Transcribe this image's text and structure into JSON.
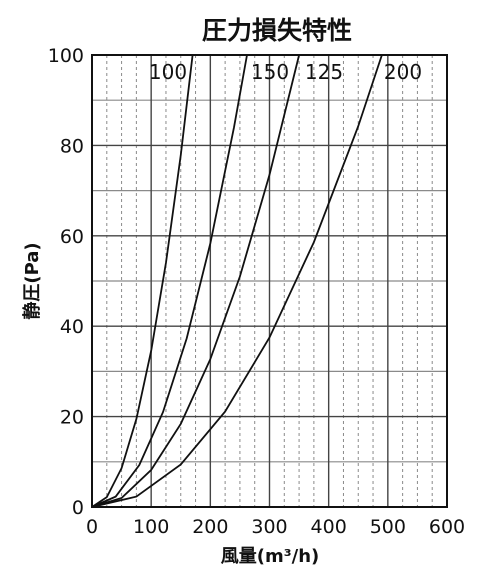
{
  "chart_data": {
    "type": "line",
    "title": "圧力損失特性",
    "xlabel": "風量(m³/h)",
    "ylabel": "静圧(Pa)",
    "xlim": [
      0,
      600
    ],
    "ylim": [
      0,
      100
    ],
    "xticks": [
      "0",
      "100",
      "200",
      "300",
      "400",
      "500",
      "600"
    ],
    "yticks": [
      "0",
      "20",
      "40",
      "60",
      "80",
      "100"
    ],
    "grid": true,
    "series": [
      {
        "name": "100",
        "x": [
          0,
          25,
          50,
          75,
          100,
          125,
          150,
          170
        ],
        "y": [
          0,
          2.2,
          8.6,
          19.5,
          34.6,
          54.1,
          77.9,
          100
        ]
      },
      {
        "name": "150",
        "x": [
          0,
          40,
          80,
          120,
          160,
          200,
          240,
          262
        ],
        "y": [
          0,
          2.3,
          9.3,
          21.0,
          37.3,
          58.3,
          84.0,
          100
        ]
      },
      {
        "name": "125",
        "x": [
          0,
          50,
          100,
          150,
          200,
          250,
          300,
          350
        ],
        "y": [
          0,
          2.0,
          8.2,
          18.4,
          32.7,
          51.0,
          73.5,
          100
        ]
      },
      {
        "name": "200",
        "x": [
          0,
          75,
          150,
          225,
          300,
          375,
          450,
          490
        ],
        "y": [
          0,
          2.3,
          9.4,
          21.1,
          37.5,
          58.6,
          84.3,
          100
        ]
      }
    ],
    "colors": {
      "line": "#111111",
      "grid": "#8a8a8a",
      "background": "#ffffff"
    }
  }
}
